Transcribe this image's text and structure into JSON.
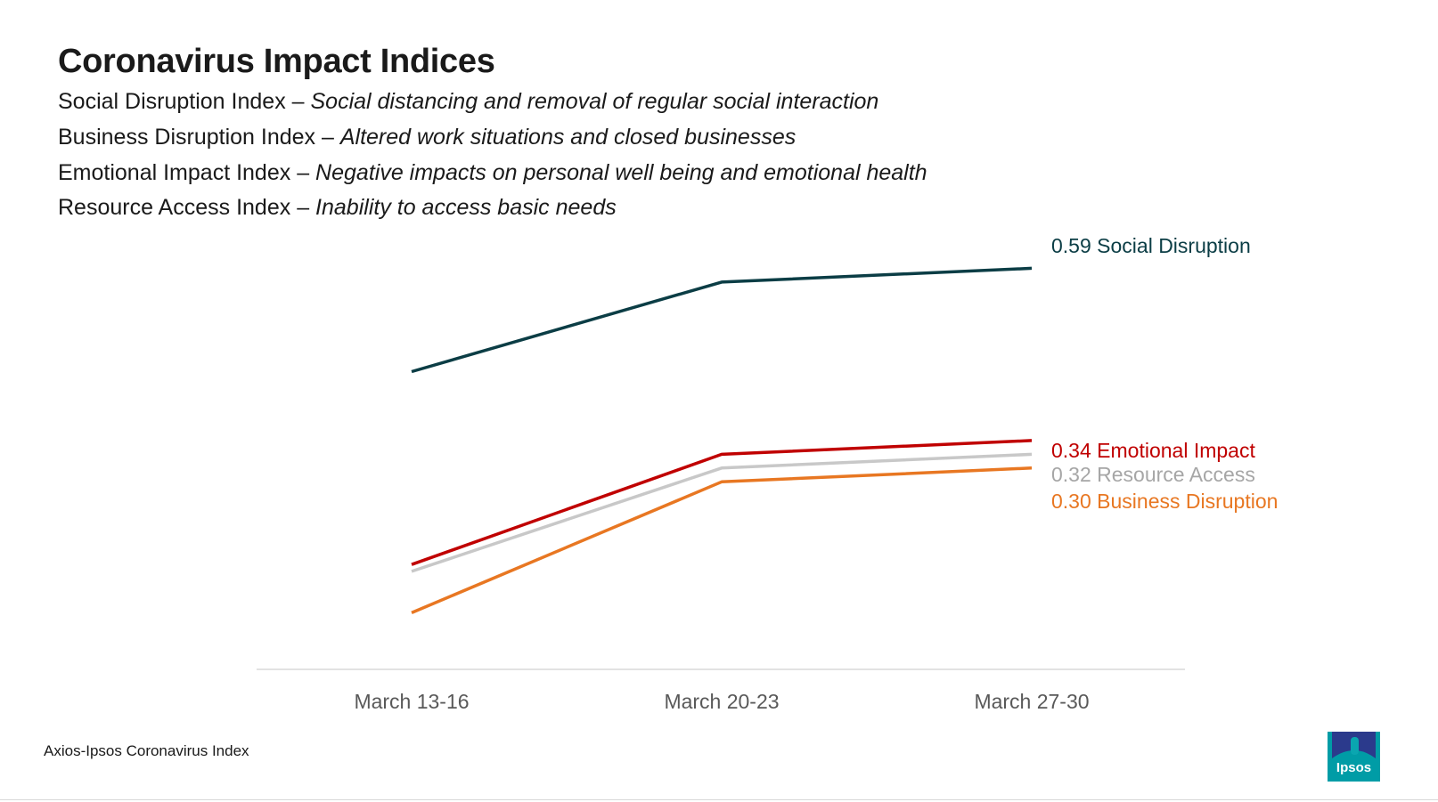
{
  "title": "Coronavirus Impact Indices",
  "definitions": [
    {
      "name": "Social Disruption Index – ",
      "description": "Social distancing and removal of regular social interaction"
    },
    {
      "name": "Business Disruption Index – ",
      "description": "Altered work situations and closed businesses"
    },
    {
      "name": "Emotional Impact Index – ",
      "description": "Negative impacts on personal well being and emotional health"
    },
    {
      "name": "Resource Access Index – ",
      "description": "Inability to access basic needs"
    }
  ],
  "chart_data": {
    "type": "line",
    "title": "Coronavirus Impact Indices",
    "categories": [
      "March  13-16",
      "March 20-23",
      "March 27-30"
    ],
    "ylim": [
      0.0,
      0.65
    ],
    "grid": false,
    "legend": "direct labels at line ends (right)",
    "series": [
      {
        "name": "Social Disruption",
        "values": [
          0.44,
          0.57,
          0.59
        ],
        "end_label": "0.59",
        "color": "#0b3d45"
      },
      {
        "name": "Emotional Impact",
        "values": [
          0.16,
          0.32,
          0.34
        ],
        "end_label": "0.34",
        "color": "#c00000"
      },
      {
        "name": "Resource Access",
        "values": [
          0.15,
          0.3,
          0.32
        ],
        "end_label": "0.32",
        "color": "#c8c8c8",
        "label_color": "#a6a6a6"
      },
      {
        "name": "Business Disruption",
        "values": [
          0.09,
          0.28,
          0.3
        ],
        "end_label": "0.30",
        "color": "#e87722"
      }
    ]
  },
  "source": "Axios-Ipsos Coronavirus Index",
  "logo": {
    "text": "Ipsos",
    "color": "#009ca6",
    "accent": "#2b3a8c"
  }
}
